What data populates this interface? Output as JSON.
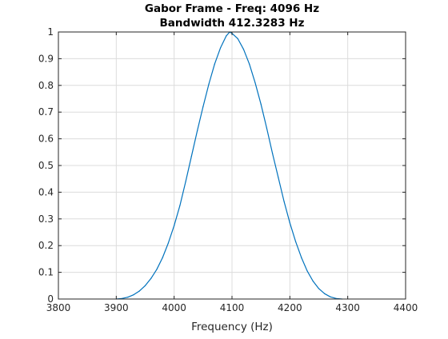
{
  "chart_data": {
    "type": "line",
    "title": [
      "Gabor Frame - Freq: 4096 Hz",
      "Bandwidth 412.3283 Hz"
    ],
    "xlabel": "Frequency (Hz)",
    "ylabel": "",
    "xlim": [
      3800,
      4400
    ],
    "ylim": [
      0,
      1
    ],
    "xticks": [
      3800,
      3900,
      4000,
      4100,
      4200,
      4300,
      4400
    ],
    "yticks": [
      0,
      0.1,
      0.2,
      0.3,
      0.4,
      0.5,
      0.6,
      0.7,
      0.8,
      0.9,
      1
    ],
    "grid": true,
    "series": [
      {
        "color": "#0072BD",
        "x": [
          3900,
          3910,
          3920,
          3930,
          3940,
          3950,
          3960,
          3970,
          3980,
          3990,
          4000,
          4010,
          4020,
          4030,
          4040,
          4050,
          4060,
          4070,
          4080,
          4090,
          4096,
          4100,
          4110,
          4120,
          4130,
          4140,
          4150,
          4160,
          4170,
          4180,
          4190,
          4200,
          4210,
          4220,
          4230,
          4240,
          4250,
          4260,
          4270,
          4280,
          4290
        ],
        "values": [
          0,
          0.002,
          0.007,
          0.016,
          0.03,
          0.05,
          0.077,
          0.111,
          0.155,
          0.21,
          0.275,
          0.35,
          0.44,
          0.535,
          0.63,
          0.72,
          0.805,
          0.88,
          0.94,
          0.985,
          1.0,
          0.995,
          0.975,
          0.935,
          0.88,
          0.81,
          0.73,
          0.64,
          0.545,
          0.455,
          0.365,
          0.285,
          0.215,
          0.155,
          0.105,
          0.067,
          0.039,
          0.02,
          0.008,
          0.002,
          0
        ]
      }
    ]
  }
}
